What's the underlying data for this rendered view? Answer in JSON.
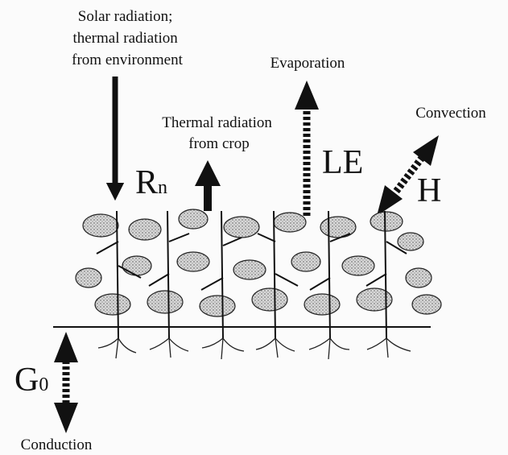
{
  "labels": {
    "solar": [
      "Solar radiation;",
      "thermal radiation",
      "from environment"
    ],
    "crop_thermal": [
      "Thermal radiation",
      "from crop"
    ],
    "evaporation": "Evaporation",
    "convection": "Convection",
    "conduction": "Conduction",
    "rn": {
      "main": "R",
      "sub": "n"
    },
    "le": "LE",
    "h": "H",
    "g0": {
      "main": "G",
      "sub": "0"
    }
  }
}
